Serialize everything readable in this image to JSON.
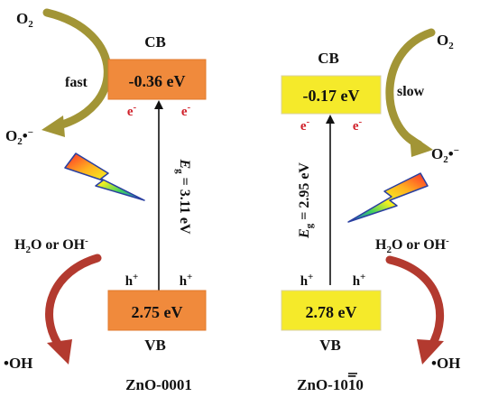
{
  "left": {
    "cb_label": "CB",
    "cb_value": "-0.36 eV",
    "vb_label": "VB",
    "vb_value": "2.75 eV",
    "electron": "e",
    "electron_sign": "-",
    "hole": "h",
    "hole_sign": "+",
    "gap_symbol": "E",
    "gap_sub": "g",
    "gap_value": " = 3.11 eV",
    "o2_top": {
      "base": "O",
      "sub": "2"
    },
    "o2_radical": {
      "base": "O",
      "sub": "2",
      "suffix": "•",
      "sup": "−"
    },
    "speed": "fast",
    "water": {
      "a": "H",
      "a_sub": "2",
      "b": "O or OH",
      "b_sup": "-"
    },
    "oh_radical": "•OH",
    "name": "ZnO-0001",
    "colors": {
      "band": "#f08a3c",
      "arrow_o2": "#9a8c2a",
      "arrow_oh": "#b0302a"
    }
  },
  "right": {
    "cb_label": "CB",
    "cb_value": "-0.17 eV",
    "vb_label": "VB",
    "vb_value": "2.78 eV",
    "electron": "e",
    "electron_sign": "-",
    "hole": "h",
    "hole_sign": "+",
    "gap_symbol": "E",
    "gap_sub": "g",
    "gap_value": " = 2.95 eV",
    "o2_top": {
      "base": "O",
      "sub": "2"
    },
    "o2_radical": {
      "base": "O",
      "sub": "2",
      "suffix": "•",
      "sup": "−"
    },
    "speed": "slow",
    "water": {
      "a": "H",
      "a_sub": "2",
      "b": "O or OH",
      "b_sup": "-"
    },
    "oh_radical": "•OH",
    "name_prefix": "ZnO-10",
    "name_overbar_digit": "1",
    "name_suffix": "0",
    "colors": {
      "band": "#f5ea2a",
      "arrow_o2": "#9a8c2a",
      "arrow_oh": "#b0302a"
    }
  },
  "colors": {
    "electron": "#d0202a",
    "text": "#111111",
    "box_stroke": "#d9d0a0"
  },
  "icons": [
    "lightning-bolt-icon",
    "lightning-bolt-icon"
  ]
}
